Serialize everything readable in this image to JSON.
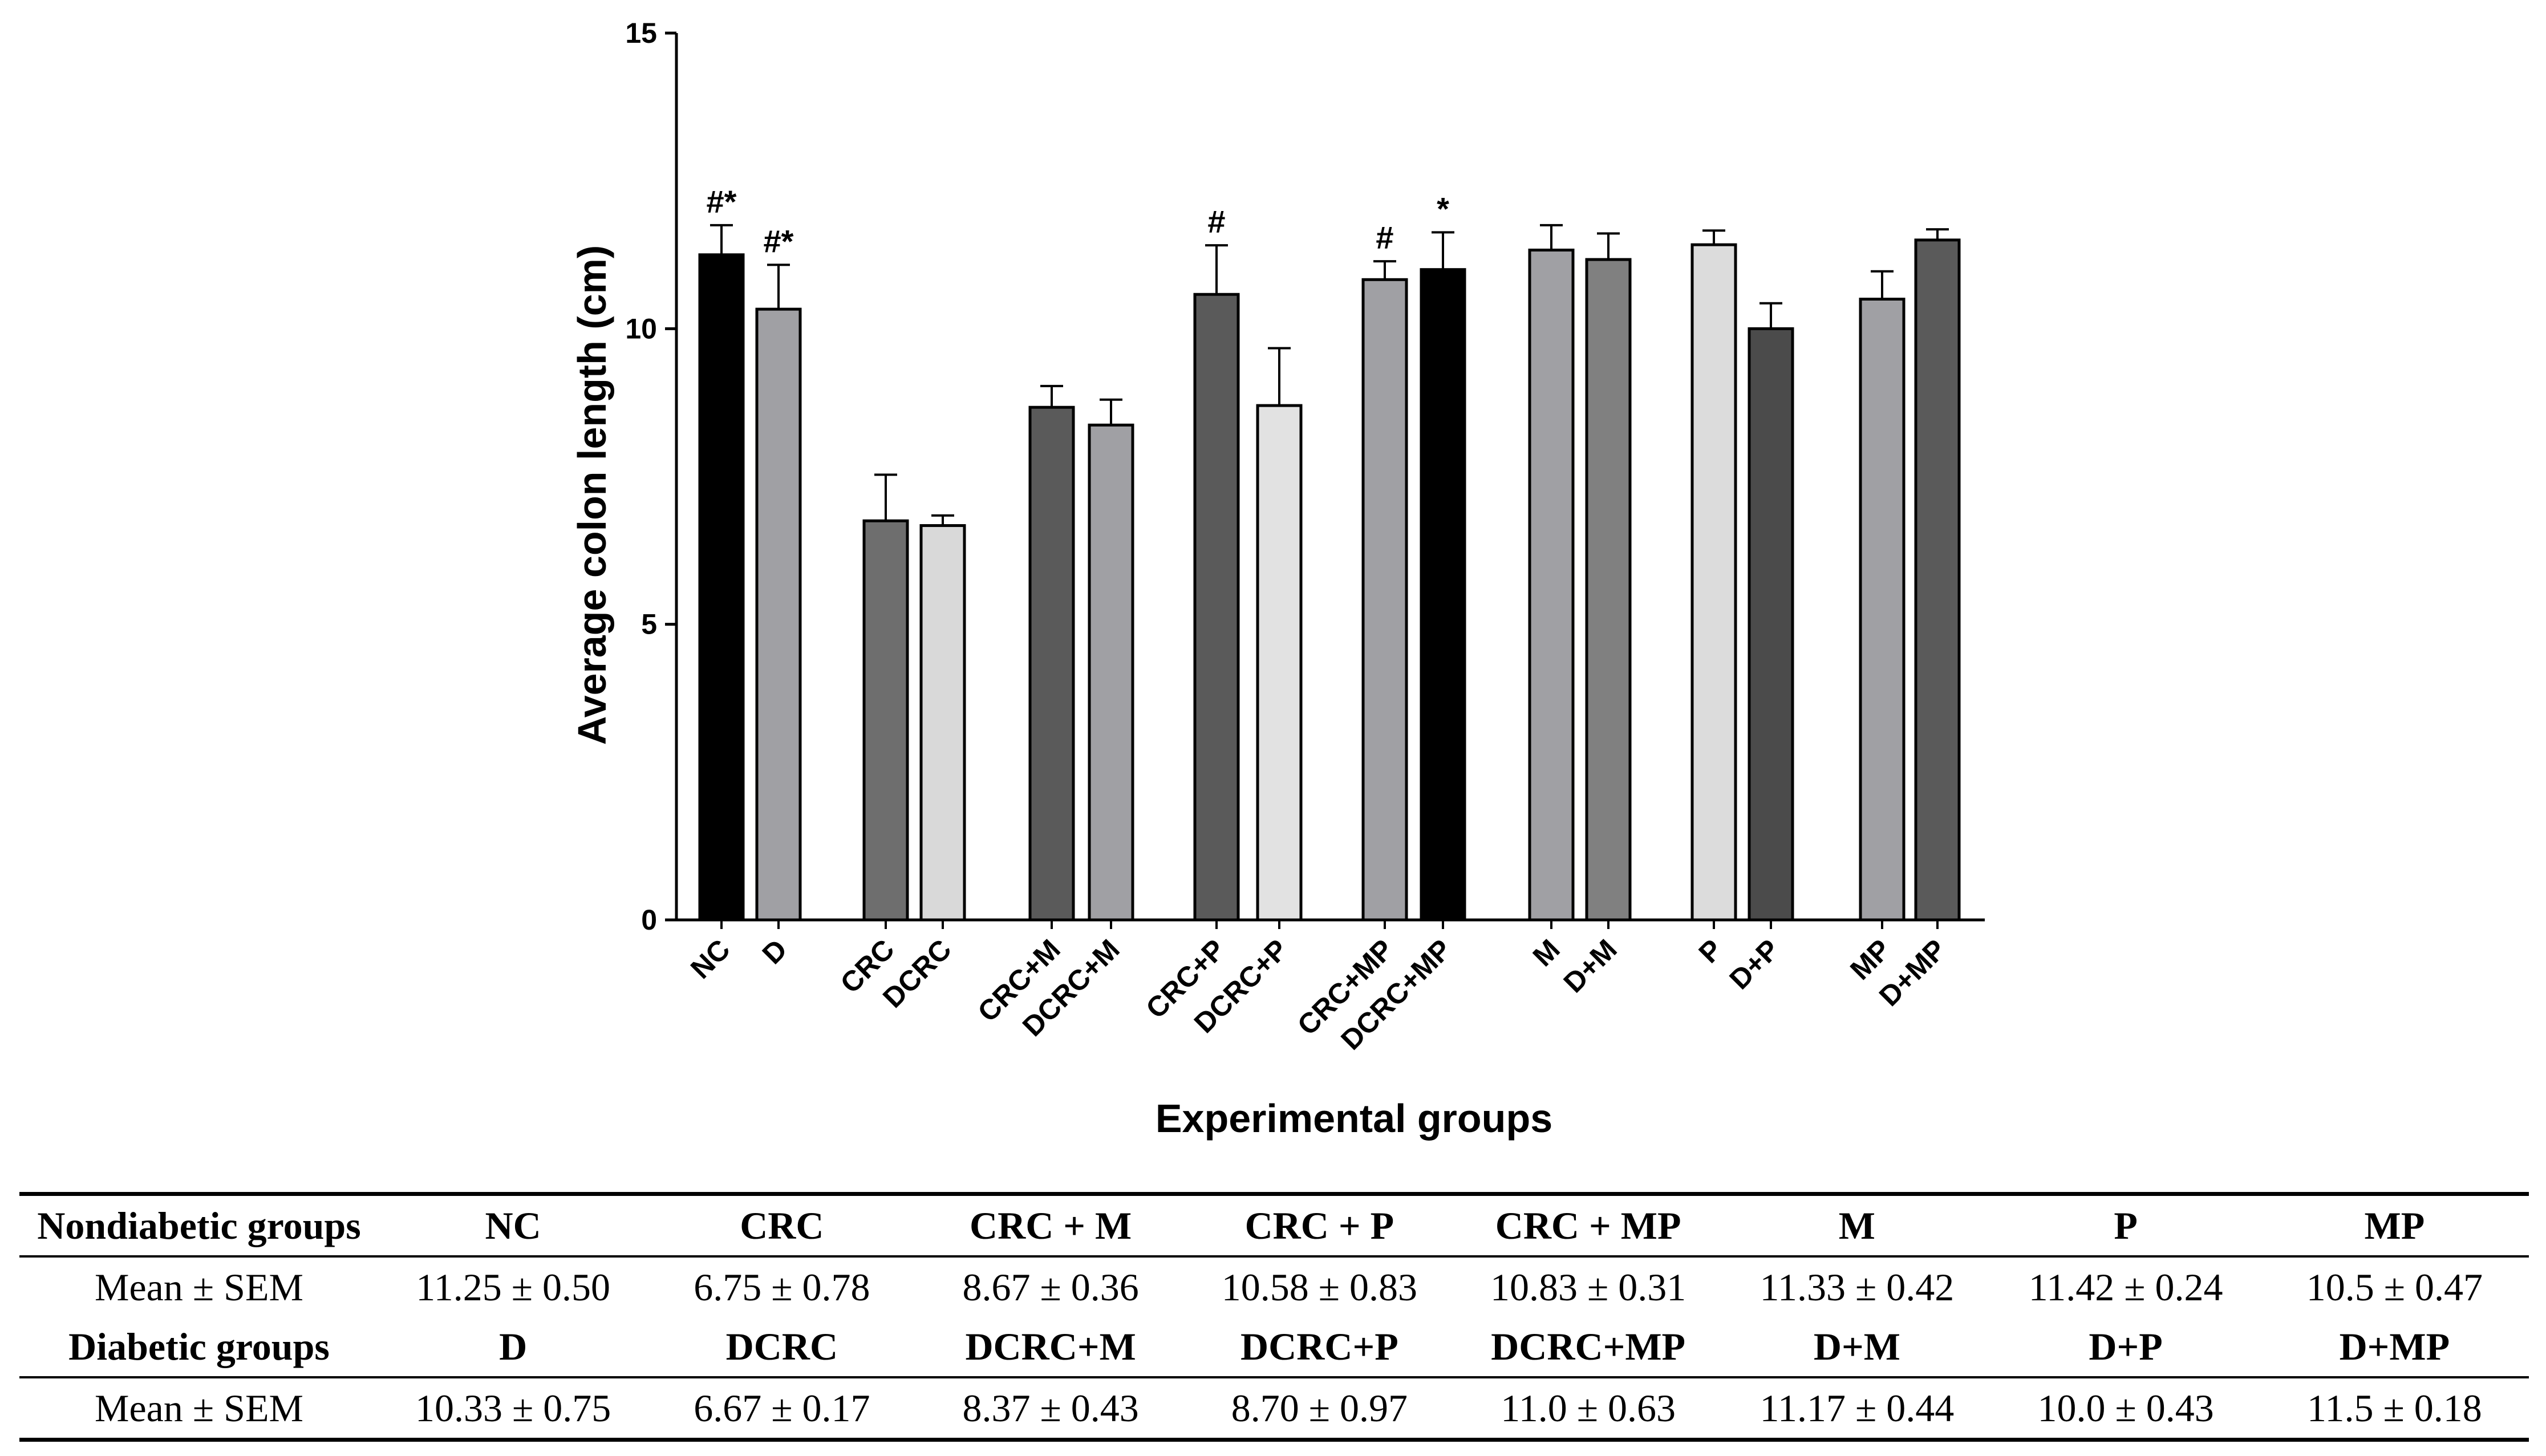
{
  "chart_data": {
    "type": "bar",
    "title": "",
    "xlabel": "Experimental groups",
    "ylabel": "Average colon length (cm)",
    "ylim": [
      0,
      15
    ],
    "yticks": [
      0,
      5,
      10,
      15
    ],
    "categories": [
      "NC",
      "D",
      "CRC",
      "DCRC",
      "CRC+M",
      "DCRC+M",
      "CRC+P",
      "DCRC+P",
      "CRC+MP",
      "DCRC+MP",
      "M",
      "D+M",
      "P",
      "D+P",
      "MP",
      "D+MP"
    ],
    "values": [
      11.25,
      10.33,
      6.75,
      6.67,
      8.67,
      8.37,
      10.58,
      8.7,
      10.83,
      11.0,
      11.33,
      11.17,
      11.42,
      10.0,
      10.5,
      11.5
    ],
    "errors": [
      0.5,
      0.75,
      0.78,
      0.17,
      0.36,
      0.43,
      0.83,
      0.97,
      0.31,
      0.63,
      0.42,
      0.44,
      0.24,
      0.43,
      0.47,
      0.18
    ],
    "colors": [
      "#000000",
      "#a0a0a4",
      "#6e6e6e",
      "#d9d9d9",
      "#5a5a5a",
      "#a0a0a4",
      "#5a5a5a",
      "#e2e2e2",
      "#a0a0a4",
      "#000000",
      "#a0a0a4",
      "#808080",
      "#dcdcdc",
      "#4b4b4b",
      "#a0a0a4",
      "#5a5a5a"
    ],
    "annotations": [
      "#*",
      "#*",
      "",
      "",
      "",
      "",
      "#",
      "",
      "#",
      "*",
      "",
      "",
      "",
      "",
      "",
      ""
    ],
    "grid": false
  },
  "table": {
    "rows": [
      {
        "type": "header",
        "cells": [
          "Nondiabetic groups",
          "NC",
          "CRC",
          "CRC + M",
          "CRC + P",
          "CRC + MP",
          "M",
          "P",
          "MP"
        ]
      },
      {
        "type": "values",
        "cells": [
          "Mean ± SEM",
          "11.25 ± 0.50",
          "6.75 ± 0.78",
          "8.67 ± 0.36",
          "10.58 ± 0.83",
          "10.83 ± 0.31",
          "11.33 ± 0.42",
          "11.42 ± 0.24",
          "10.5 ± 0.47"
        ]
      },
      {
        "type": "header",
        "cells": [
          "Diabetic groups",
          "D",
          "DCRC",
          "DCRC+M",
          "DCRC+P",
          "DCRC+MP",
          "D+M",
          "D+P",
          "D+MP"
        ]
      },
      {
        "type": "values",
        "cells": [
          "Mean ± SEM",
          "10.33 ± 0.75",
          "6.67 ± 0.17",
          "8.37 ± 0.43",
          "8.70 ± 0.97",
          "11.0 ± 0.63",
          "11.17 ± 0.44",
          "10.0 ± 0.43",
          "11.5 ± 0.18"
        ]
      }
    ]
  }
}
